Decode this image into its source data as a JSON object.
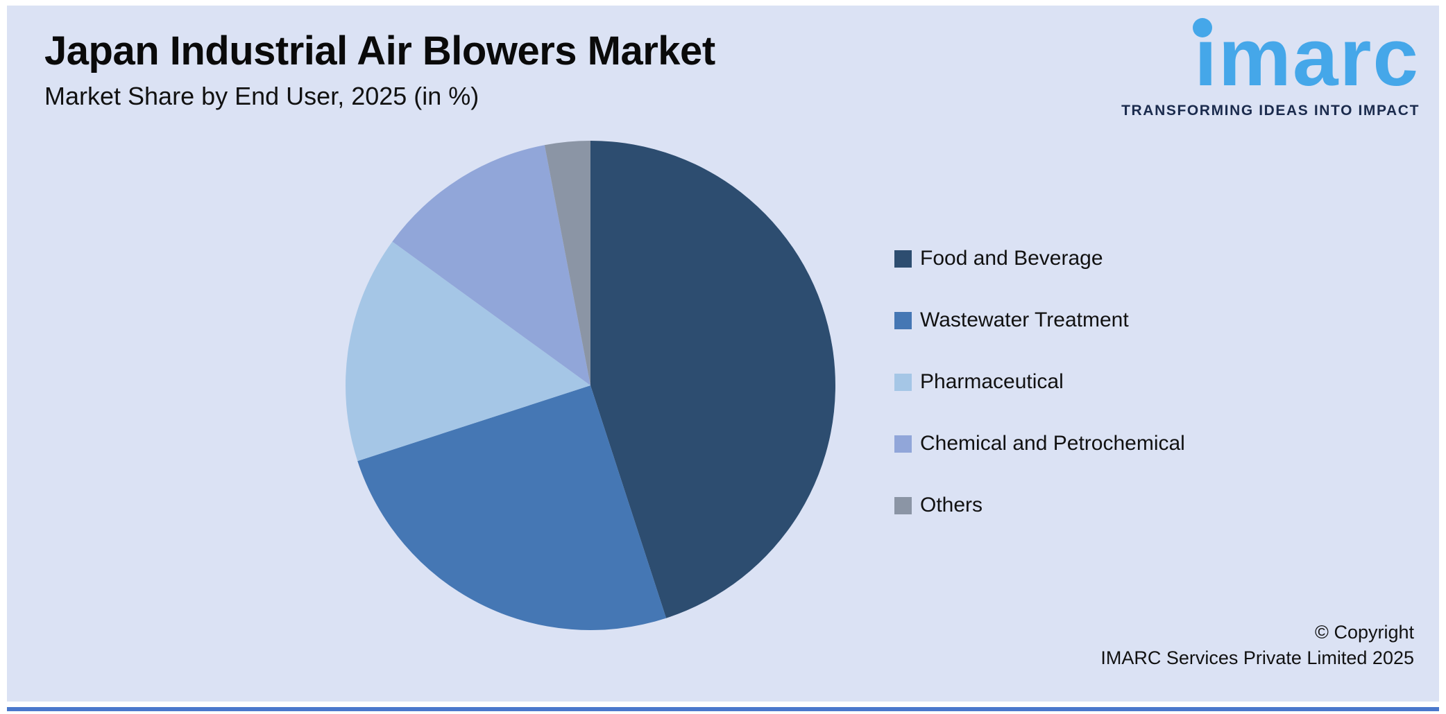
{
  "header": {
    "title": "Japan Industrial Air Blowers Market",
    "subtitle": "Market Share by End User, 2025 (in %)"
  },
  "logo": {
    "brand": "imarc",
    "tagline": "TRANSFORMING IDEAS INTO IMPACT",
    "brand_color": "#45a7e9",
    "tagline_color": "#1b2b4d"
  },
  "chart_data": {
    "type": "pie",
    "title": "Japan Industrial Air Blowers Market",
    "subtitle": "Market Share by End User, 2025 (in %)",
    "unit": "%",
    "categories": [
      "Food and Beverage",
      "Wastewater Treatment",
      "Pharmaceutical",
      "Chemical and Petrochemical",
      "Others"
    ],
    "values": [
      45,
      25,
      15,
      12,
      3
    ],
    "colors": [
      "#2d4d70",
      "#4577b4",
      "#a5c6e6",
      "#91a6d9",
      "#8b95a5"
    ],
    "start_angle_deg": 0,
    "direction": "clockwise",
    "legend_position": "right",
    "data_labels": false
  },
  "footer": {
    "copyright_line1": "© Copyright",
    "copyright_line2": "IMARC Services Private Limited 2025"
  },
  "colors": {
    "panel_background": "#dbe2f4",
    "bottom_rule": "#4a78cc"
  }
}
